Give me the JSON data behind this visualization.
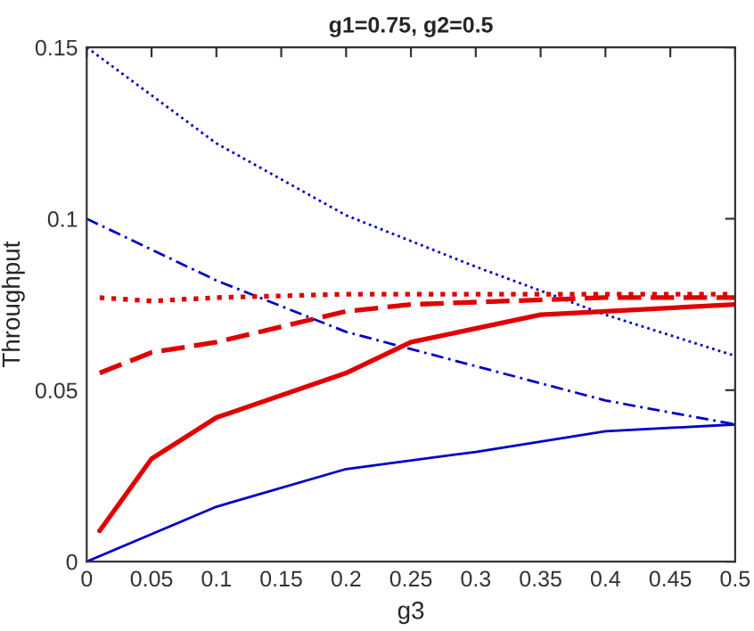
{
  "chart_data": {
    "type": "line",
    "title": "g1=0.75, g2=0.5",
    "xlabel": "g3",
    "ylabel": "Throughput",
    "xlim": [
      0,
      0.5
    ],
    "xticks": [
      0,
      0.05,
      0.1,
      0.15,
      0.2,
      0.25,
      0.3,
      0.35,
      0.4,
      0.45,
      0.5
    ],
    "ylim": [
      0,
      0.15
    ],
    "yticks": [
      0,
      0.05,
      0.1,
      0.15
    ],
    "grid": false,
    "legend": false,
    "series": [
      {
        "color": "#0000c8",
        "line_style": "dotted",
        "x": [
          0,
          0.1,
          0.2,
          0.3,
          0.4,
          0.5
        ],
        "values": [
          0.15,
          0.122,
          0.101,
          0.086,
          0.072,
          0.06
        ]
      },
      {
        "color": "#0000c8",
        "line_style": "dashdot",
        "x": [
          0,
          0.1,
          0.2,
          0.3,
          0.4,
          0.5
        ],
        "values": [
          0.1,
          0.082,
          0.067,
          0.057,
          0.047,
          0.04
        ]
      },
      {
        "color": "#0000c8",
        "line_style": "solid",
        "x": [
          0,
          0.1,
          0.2,
          0.3,
          0.4,
          0.5
        ],
        "values": [
          0,
          0.016,
          0.027,
          0.032,
          0.038,
          0.04
        ]
      },
      {
        "color": "#e00000",
        "line_style": "solid",
        "x": [
          0.01,
          0.05,
          0.1,
          0.2,
          0.25,
          0.35,
          0.4,
          0.5
        ],
        "values": [
          0.009,
          0.03,
          0.042,
          0.055,
          0.064,
          0.072,
          0.073,
          0.075
        ]
      },
      {
        "color": "#e00000",
        "line_style": "dashed",
        "x": [
          0.01,
          0.05,
          0.1,
          0.2,
          0.25,
          0.4,
          0.5
        ],
        "values": [
          0.055,
          0.061,
          0.064,
          0.073,
          0.075,
          0.077,
          0.077
        ]
      },
      {
        "color": "#e00000",
        "line_style": "dotted",
        "x": [
          0.01,
          0.05,
          0.1,
          0.2,
          0.3,
          0.4,
          0.5
        ],
        "values": [
          0.077,
          0.076,
          0.077,
          0.078,
          0.078,
          0.078,
          0.078
        ]
      }
    ]
  }
}
